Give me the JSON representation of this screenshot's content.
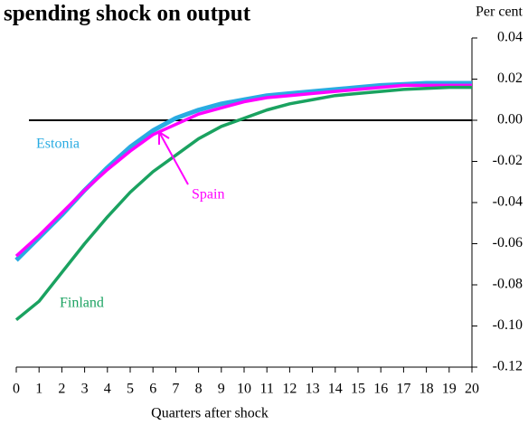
{
  "chart_data": {
    "type": "line",
    "title": "spending shock on output",
    "y_unit": "Per cent",
    "xlabel": "Quarters after shock",
    "x": [
      0,
      1,
      2,
      3,
      4,
      5,
      6,
      7,
      8,
      9,
      10,
      11,
      12,
      13,
      14,
      15,
      16,
      17,
      18,
      19,
      20
    ],
    "xlim": [
      0,
      20
    ],
    "xticks": [
      0,
      1,
      2,
      3,
      4,
      5,
      6,
      7,
      8,
      9,
      10,
      11,
      12,
      13,
      14,
      15,
      16,
      17,
      18,
      19,
      20
    ],
    "ylim": [
      -0.12,
      0.04
    ],
    "yticks": [
      0.04,
      0.02,
      {
        "value": 0,
        "label": "0.00"
      },
      -0.02,
      -0.04,
      -0.06,
      -0.08,
      {
        "value": -0.1,
        "label": "-0.10"
      },
      -0.12
    ],
    "series": [
      {
        "name": "Estonia",
        "color": "#29abe2",
        "values": [
          -0.068,
          -0.057,
          -0.046,
          -0.034,
          -0.023,
          -0.013,
          -0.005,
          0.001,
          0.005,
          0.008,
          0.01,
          0.012,
          0.013,
          0.014,
          0.015,
          0.016,
          0.017,
          0.0175,
          0.018,
          0.018,
          0.018
        ]
      },
      {
        "name": "Spain",
        "color": "#ff00ff",
        "values": [
          -0.066,
          -0.056,
          -0.045,
          -0.034,
          -0.024,
          -0.015,
          -0.007,
          -0.002,
          0.003,
          0.006,
          0.009,
          0.011,
          0.012,
          0.013,
          0.014,
          0.015,
          0.016,
          0.017,
          0.017,
          0.017,
          0.017
        ]
      },
      {
        "name": "Finland",
        "color": "#1aa260",
        "values": [
          -0.097,
          -0.088,
          -0.074,
          -0.06,
          -0.047,
          -0.035,
          -0.025,
          -0.017,
          -0.009,
          -0.003,
          0.001,
          0.005,
          0.008,
          0.01,
          0.012,
          0.013,
          0.014,
          0.015,
          0.0155,
          0.016,
          0.016
        ]
      }
    ]
  }
}
